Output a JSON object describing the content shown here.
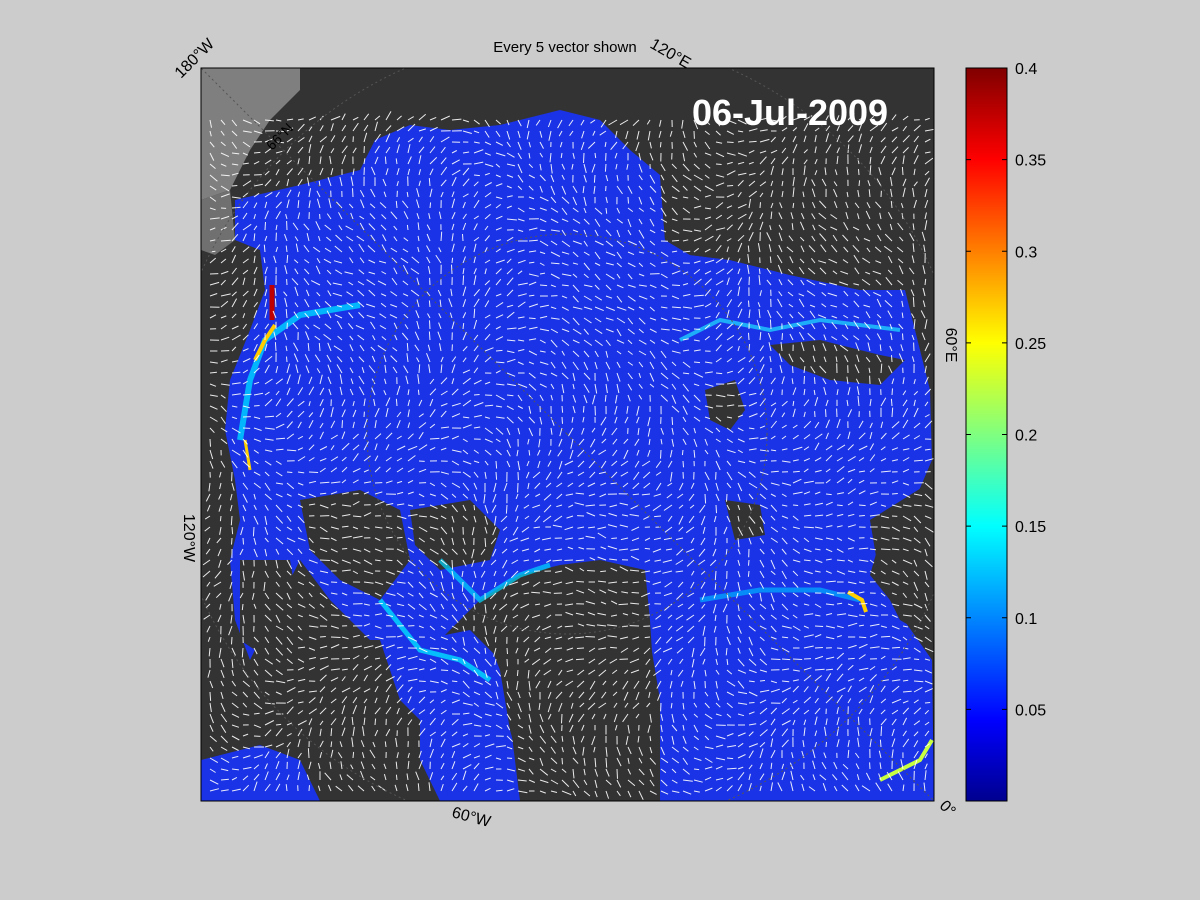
{
  "figure": {
    "title": "Every 5 vector shown",
    "date_label": "06-Jul-2009"
  },
  "map": {
    "projection": "polar stereographic (north pole)",
    "longitude_labels": [
      "180°W",
      "120°E",
      "60°E",
      "0°",
      "60°W",
      "120°W"
    ],
    "latitude_labels": [
      "66°N"
    ],
    "vector_color": "#ffffff",
    "land_color": "#333333",
    "coast_fill_color": "#808080",
    "graticule_color": "#555555"
  },
  "colorbar": {
    "colormap": "jet",
    "min": 0,
    "max": 0.4,
    "ticks": [
      0.05,
      0.1,
      0.15,
      0.2,
      0.25,
      0.3,
      0.35,
      0.4
    ],
    "tick_labels": [
      "0.05",
      "0.1",
      "0.15",
      "0.2",
      "0.25",
      "0.3",
      "0.35",
      "0.4"
    ],
    "stops": [
      "#00008f",
      "#0000ff",
      "#00ffff",
      "#ffff00",
      "#ff0000",
      "#800000"
    ]
  }
}
